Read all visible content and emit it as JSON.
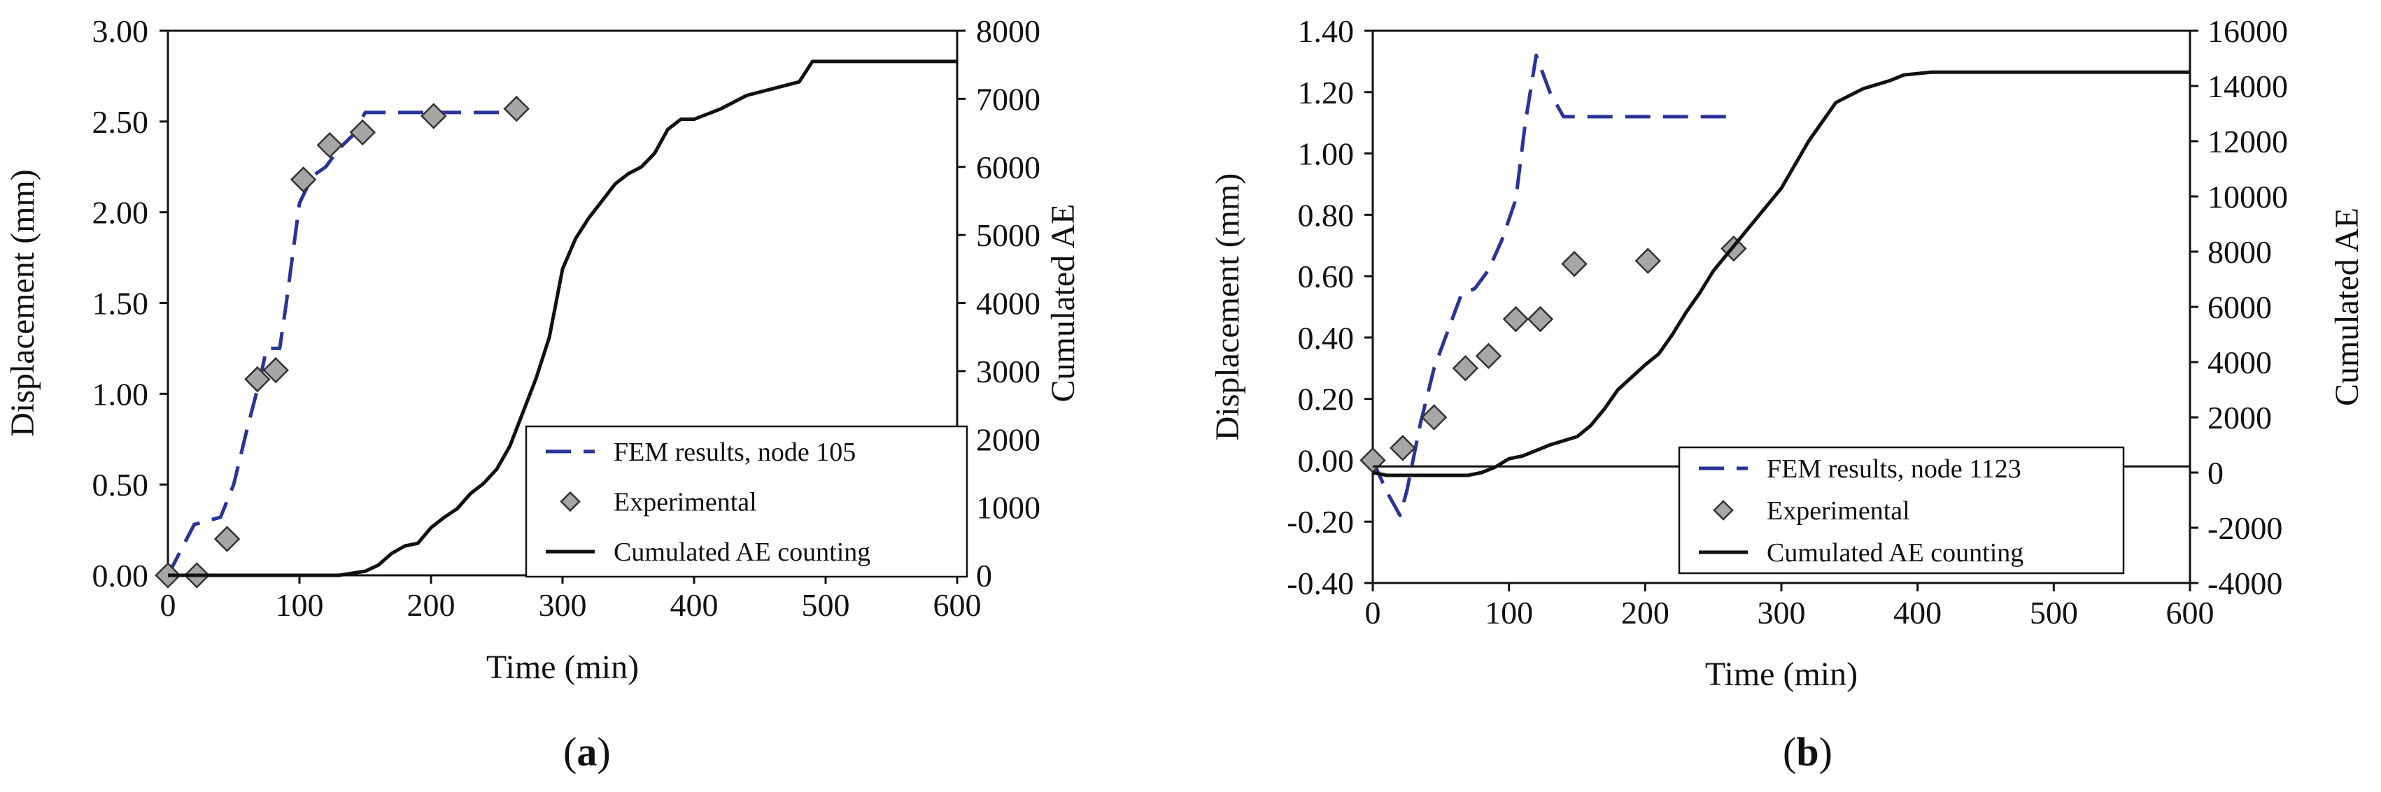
{
  "colors": {
    "fem": "#2b3399",
    "exp_fill": "#a6a6a6",
    "exp_stroke": "#333333",
    "ae": "#111111"
  },
  "chart_data": [
    {
      "type": "line",
      "panel_label": "(a)",
      "xlabel": "Time (min)",
      "ylabel": "Displacement (mm)",
      "y2label": "Cumulated AE",
      "xlim": [
        0,
        600
      ],
      "ylim": [
        0,
        3
      ],
      "y2lim": [
        0,
        8000
      ],
      "xticks": [
        "0",
        "100",
        "200",
        "300",
        "400",
        "500",
        "600"
      ],
      "yticks": [
        "0.00",
        "0.50",
        "1.00",
        "1.50",
        "2.00",
        "2.50",
        "3.00"
      ],
      "y2ticks": [
        "0",
        "1000",
        "2000",
        "3000",
        "4000",
        "5000",
        "6000",
        "7000",
        "8000"
      ],
      "series": [
        {
          "name": "FEM results, node 105",
          "style": "dashed",
          "axis": "left",
          "x": [
            0,
            20,
            40,
            50,
            60,
            70,
            75,
            85,
            90,
            100,
            110,
            120,
            130,
            140,
            150,
            165,
            270
          ],
          "y": [
            0.0,
            0.28,
            0.32,
            0.5,
            0.8,
            1.08,
            1.25,
            1.25,
            1.5,
            2.05,
            2.2,
            2.25,
            2.35,
            2.42,
            2.55,
            2.55,
            2.55
          ]
        },
        {
          "name": "Experimental",
          "style": "marker",
          "axis": "left",
          "x": [
            0,
            22,
            45,
            68,
            82,
            103,
            123,
            148,
            202,
            265
          ],
          "y": [
            0.0,
            0.0,
            0.2,
            1.08,
            1.13,
            2.18,
            2.37,
            2.44,
            2.53,
            2.57
          ]
        },
        {
          "name": "Cumulated AE counting",
          "style": "solid",
          "axis": "right",
          "x": [
            0,
            100,
            130,
            140,
            150,
            160,
            170,
            180,
            190,
            200,
            210,
            220,
            230,
            240,
            250,
            260,
            270,
            280,
            290,
            300,
            310,
            320,
            330,
            340,
            350,
            360,
            370,
            380,
            390,
            400,
            420,
            440,
            460,
            480,
            490,
            500,
            600
          ],
          "y": [
            0,
            0,
            0,
            30,
            60,
            150,
            320,
            430,
            470,
            700,
            850,
            980,
            1200,
            1350,
            1560,
            1900,
            2400,
            2900,
            3500,
            4500,
            4950,
            5250,
            5500,
            5750,
            5900,
            6000,
            6200,
            6550,
            6700,
            6700,
            6850,
            7050,
            7150,
            7250,
            7550,
            7550,
            7550
          ]
        }
      ]
    },
    {
      "type": "line",
      "panel_label": "(b)",
      "xlabel": "Time (min)",
      "ylabel": "Displacement (mm)",
      "y2label": "Cumulated AE",
      "xlim": [
        0,
        600
      ],
      "ylim": [
        -0.4,
        1.4
      ],
      "y2lim": [
        -4000,
        16000
      ],
      "xticks": [
        "0",
        "100",
        "200",
        "300",
        "400",
        "500",
        "600"
      ],
      "yticks": [
        "-0.40",
        "-0.20",
        "0.00",
        "0.20",
        "0.40",
        "0.60",
        "0.80",
        "1.00",
        "1.20",
        "1.40"
      ],
      "y2ticks": [
        "-4000",
        "-2000",
        "0",
        "2000",
        "4000",
        "6000",
        "8000",
        "10000",
        "12000",
        "14000",
        "16000"
      ],
      "series": [
        {
          "name": "FEM results, node 1123",
          "style": "dashed",
          "axis": "left",
          "x": [
            0,
            10,
            20,
            25,
            35,
            45,
            55,
            65,
            75,
            85,
            95,
            105,
            112,
            120,
            130,
            140,
            150,
            265
          ],
          "y": [
            0.0,
            -0.1,
            -0.18,
            -0.1,
            0.12,
            0.3,
            0.42,
            0.54,
            0.56,
            0.62,
            0.72,
            0.85,
            1.1,
            1.32,
            1.2,
            1.12,
            1.12,
            1.12
          ]
        },
        {
          "name": "Experimental",
          "style": "marker",
          "axis": "left",
          "x": [
            0,
            22,
            45,
            68,
            85,
            105,
            123,
            148,
            202,
            265
          ],
          "y": [
            0.0,
            0.04,
            0.14,
            0.3,
            0.34,
            0.46,
            0.46,
            0.64,
            0.65,
            0.69
          ]
        },
        {
          "name": "Cumulated AE counting",
          "style": "solid",
          "axis": "right",
          "x": [
            0,
            10,
            25,
            40,
            55,
            70,
            80,
            90,
            100,
            110,
            120,
            130,
            150,
            160,
            170,
            180,
            200,
            210,
            220,
            230,
            240,
            250,
            270,
            280,
            300,
            320,
            340,
            360,
            380,
            390,
            410,
            600
          ],
          "y": [
            0,
            -100,
            -100,
            -100,
            -100,
            -100,
            0,
            200,
            500,
            600,
            800,
            1000,
            1300,
            1700,
            2300,
            3000,
            3900,
            4300,
            5000,
            5800,
            6500,
            7300,
            8500,
            9100,
            10300,
            12000,
            13400,
            13900,
            14200,
            14400,
            14500,
            14500
          ]
        },
        {
          "name": "Zero line",
          "style": "solid",
          "axis": "left",
          "legend": false,
          "x": [
            0,
            600
          ],
          "y": [
            -0.02,
            -0.02
          ]
        }
      ]
    }
  ]
}
